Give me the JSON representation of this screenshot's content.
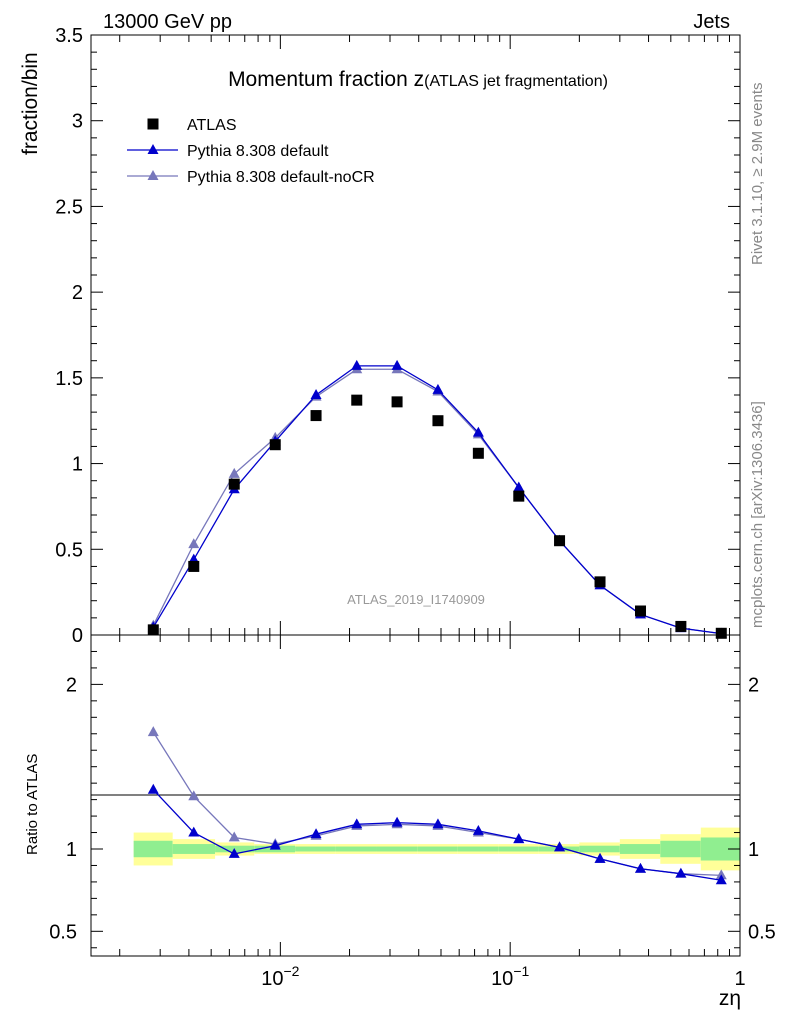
{
  "header": {
    "left": "13000 GeV pp",
    "right": "Jets"
  },
  "side_labels": {
    "rivet": "Rivet 3.1.10, ≥ 2.9M events",
    "mcplots": "mcplots.cern.ch [arXiv:1306.3436]"
  },
  "chart_data": [
    {
      "type": "scatter",
      "title_main": "Momentum fraction z",
      "title_sub": "(ATLAS jet fragmentation)",
      "ylabel": "fraction/bin",
      "watermark": "ATLAS_2019_I1740909",
      "xscale": "log",
      "xlim": [
        0.0015,
        1.0
      ],
      "ylim": [
        0,
        3.5
      ],
      "yticks": [
        0,
        0.5,
        1,
        1.5,
        2,
        2.5,
        3,
        3.5
      ],
      "ytick_labels": [
        "0",
        "0.5",
        "1",
        "1.5",
        "2",
        "2.5",
        "3",
        "3.5"
      ],
      "legend_position": "top-left",
      "x": [
        0.0028,
        0.0042,
        0.0063,
        0.0095,
        0.0143,
        0.0215,
        0.0322,
        0.0485,
        0.0727,
        0.109,
        0.164,
        0.246,
        0.369,
        0.553,
        0.829
      ],
      "series": [
        {
          "name": "ATLAS",
          "marker": "square",
          "color": "#000000",
          "values": [
            0.03,
            0.4,
            0.88,
            1.11,
            1.28,
            1.37,
            1.36,
            1.25,
            1.06,
            0.81,
            0.55,
            0.31,
            0.14,
            0.05,
            0.01
          ]
        },
        {
          "name": "Pythia 8.308 default",
          "marker": "triangle",
          "color": "#0000cc",
          "values": [
            0.045,
            0.44,
            0.85,
            1.13,
            1.4,
            1.57,
            1.57,
            1.43,
            1.18,
            0.86,
            0.55,
            0.29,
            0.12,
            0.04,
            0.008
          ]
        },
        {
          "name": "Pythia 8.308 default-noCR",
          "marker": "triangle",
          "color": "#7777bb",
          "values": [
            0.055,
            0.53,
            0.94,
            1.15,
            1.39,
            1.55,
            1.55,
            1.42,
            1.17,
            0.86,
            0.55,
            0.29,
            0.12,
            0.04,
            0.008
          ]
        }
      ]
    },
    {
      "type": "scatter",
      "ylabel": "Ratio to ATLAS",
      "xlabel": "zη",
      "xscale": "log",
      "xlim": [
        0.0015,
        1.0
      ],
      "ylim": [
        0.35,
        2.3
      ],
      "yticks": [
        0.5,
        1,
        2
      ],
      "ytick_labels": [
        "0.5",
        "1",
        "2"
      ],
      "xtick_labels": [
        {
          "value": 0.01,
          "base": "10",
          "exp": "−2"
        },
        {
          "value": 0.1,
          "base": "10",
          "exp": "−1"
        },
        {
          "value": 1,
          "base": "1",
          "exp": ""
        }
      ],
      "band_edges": [
        0.0023,
        0.0034,
        0.0052,
        0.0077,
        0.0116,
        0.0174,
        0.0262,
        0.0394,
        0.0591,
        0.0887,
        0.133,
        0.2,
        0.3,
        0.45,
        0.675,
        1.0
      ],
      "band_green": [
        0.05,
        0.03,
        0.02,
        0.02,
        0.015,
        0.015,
        0.015,
        0.015,
        0.015,
        0.015,
        0.015,
        0.02,
        0.03,
        0.05,
        0.07
      ],
      "band_yellow": [
        0.1,
        0.06,
        0.04,
        0.03,
        0.03,
        0.03,
        0.03,
        0.03,
        0.03,
        0.03,
        0.03,
        0.04,
        0.06,
        0.09,
        0.13
      ],
      "band_colors": {
        "green": "#90ee90",
        "yellow": "#ffff99"
      },
      "x": [
        0.0028,
        0.0042,
        0.0063,
        0.0095,
        0.0143,
        0.0215,
        0.0322,
        0.0485,
        0.0727,
        0.109,
        0.164,
        0.246,
        0.369,
        0.553,
        0.829
      ],
      "series": [
        {
          "name": "Pythia 8.308 default",
          "marker": "triangle",
          "color": "#0000cc",
          "values": [
            1.36,
            1.1,
            0.97,
            1.02,
            1.09,
            1.15,
            1.16,
            1.15,
            1.11,
            1.06,
            1.01,
            0.94,
            0.88,
            0.85,
            0.81
          ]
        },
        {
          "name": "Pythia 8.308 default-noCR",
          "marker": "triangle",
          "color": "#7777bb",
          "values": [
            1.71,
            1.32,
            1.07,
            1.03,
            1.08,
            1.14,
            1.15,
            1.14,
            1.1,
            1.06,
            1.01,
            0.94,
            0.88,
            0.85,
            0.84
          ]
        }
      ]
    }
  ]
}
